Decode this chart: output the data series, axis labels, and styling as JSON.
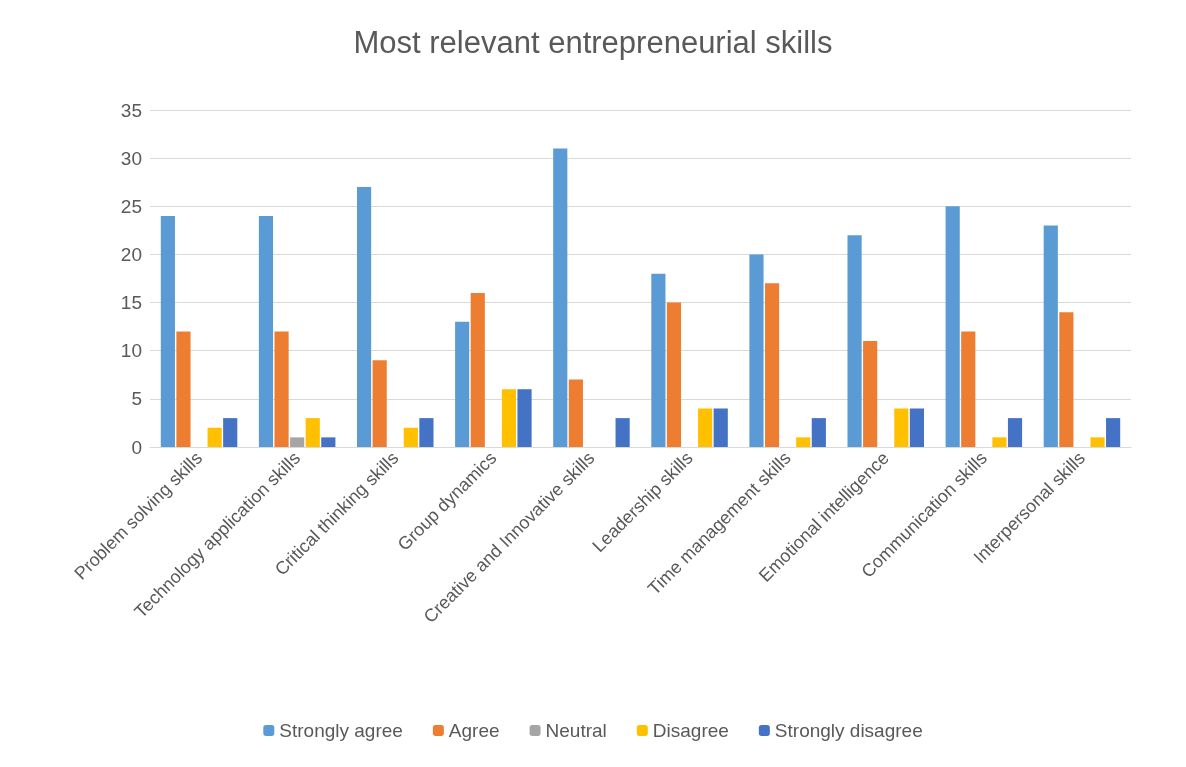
{
  "chart_data": {
    "type": "bar",
    "title": "Most relevant entrepreneurial skills",
    "categories": [
      "Problem solving skills",
      "Technology application skills",
      "Critical thinking skills",
      "Group dynamics",
      "Creative and Innovative skills",
      "Leadership skills",
      "Time management skills",
      "Emotional intelligence",
      "Communication skills",
      "Interpersonal skills"
    ],
    "series": [
      {
        "name": "Strongly agree",
        "color": "#5b9bd5",
        "values": [
          24,
          24,
          27,
          13,
          31,
          18,
          20,
          22,
          25,
          23
        ]
      },
      {
        "name": "Agree",
        "color": "#ed7d31",
        "values": [
          12,
          12,
          9,
          16,
          7,
          15,
          17,
          11,
          12,
          14
        ]
      },
      {
        "name": "Neutral",
        "color": "#a5a5a5",
        "values": [
          0,
          1,
          0,
          0,
          0,
          0,
          0,
          0,
          0,
          0
        ]
      },
      {
        "name": "Disagree",
        "color": "#ffc000",
        "values": [
          2,
          3,
          2,
          6,
          0,
          4,
          1,
          4,
          1,
          1
        ]
      },
      {
        "name": "Strongly disagree",
        "color": "#4472c4",
        "values": [
          3,
          1,
          3,
          6,
          3,
          4,
          3,
          4,
          3,
          3
        ]
      }
    ],
    "ylim": [
      0,
      35
    ],
    "yticks": [
      0,
      5,
      10,
      15,
      20,
      25,
      30,
      35
    ],
    "grid": "y",
    "legend": "bottom"
  }
}
